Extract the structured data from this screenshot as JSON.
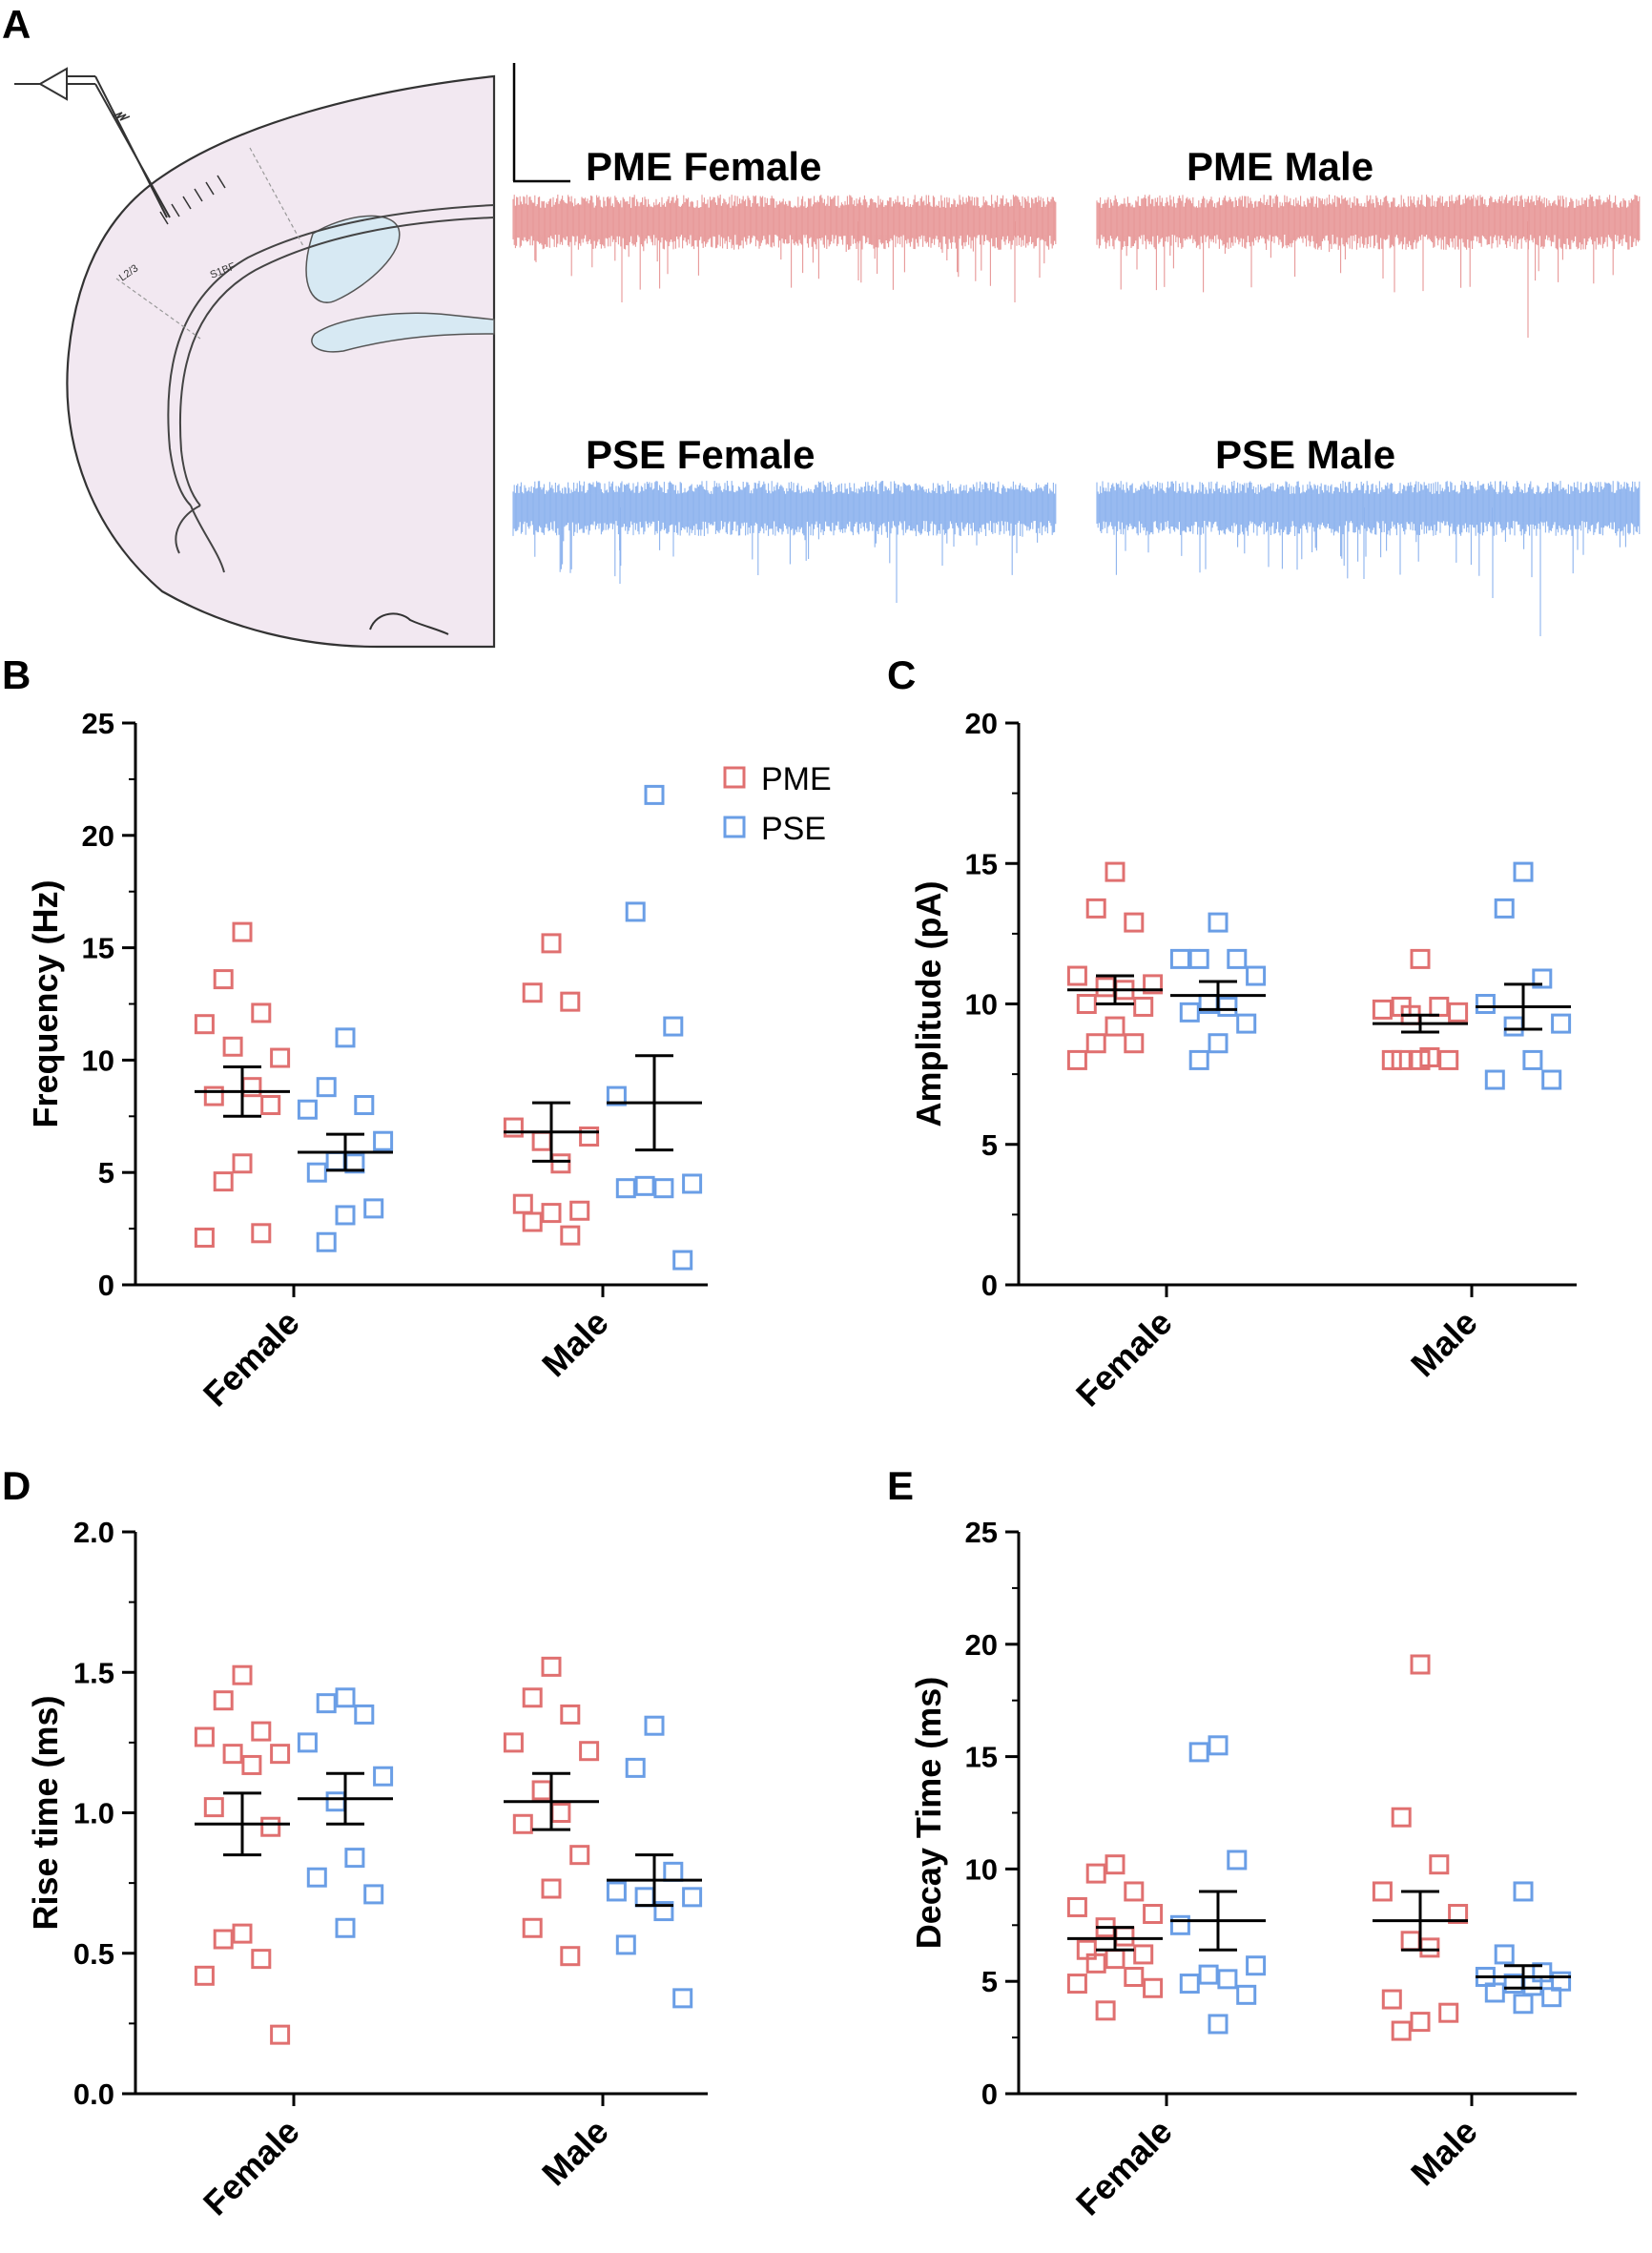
{
  "colors": {
    "pme": "#e07070",
    "pse": "#6a9ee6",
    "pme_trace": "#e79797",
    "pse_trace": "#8db3ee",
    "brain_fill": "#f2e8f1",
    "ventricle": "#d7e9f3",
    "axis": "#000000"
  },
  "panel_a": {
    "letter": "A",
    "brain_labels": {
      "layer": "L2/3",
      "region": "S1BF"
    },
    "traces": [
      {
        "label": "PME Female",
        "group": "pme"
      },
      {
        "label": "PME Male",
        "group": "pme"
      },
      {
        "label": "PSE Female",
        "group": "pse"
      },
      {
        "label": "PSE Male",
        "group": "pse"
      }
    ],
    "icons": [
      "electrode-amplifier-icon",
      "scale-bar-icon",
      "brain-slice-diagram"
    ]
  },
  "legend": {
    "items": [
      "PME",
      "PSE"
    ],
    "placement": "top-right of panel B"
  },
  "chart_data": [
    {
      "panel": "B",
      "type": "scatter",
      "ylabel": "Frequency (Hz)",
      "ylim": [
        0,
        25
      ],
      "yticks": [
        "0",
        "5",
        "10",
        "15",
        "20",
        "25"
      ],
      "categories": [
        "Female",
        "Male"
      ],
      "series": [
        {
          "name": "PME",
          "values": [
            [
              15.7,
              13.6,
              12.1,
              11.6,
              10.1,
              10.6,
              8.8,
              8.4,
              8.0,
              5.4,
              4.6,
              2.3,
              2.1
            ],
            [
              15.2,
              13.0,
              12.6,
              7.0,
              6.6,
              6.4,
              5.4,
              3.6,
              3.3,
              3.2,
              2.8,
              2.2
            ]
          ],
          "mean": [
            8.6,
            6.8
          ],
          "sem": [
            1.1,
            1.3
          ]
        },
        {
          "name": "PSE",
          "values": [
            [
              11.0,
              8.8,
              8.0,
              7.8,
              6.4,
              5.5,
              5.4,
              5.0,
              3.4,
              3.1,
              1.9
            ],
            [
              21.8,
              16.6,
              11.5,
              8.4,
              4.5,
              4.4,
              4.3,
              4.3,
              1.1
            ]
          ],
          "mean": [
            5.9,
            8.1
          ],
          "sem": [
            0.8,
            2.1
          ]
        }
      ]
    },
    {
      "panel": "C",
      "type": "scatter",
      "ylabel": "Amplitude (pA)",
      "ylim": [
        0,
        20
      ],
      "yticks": [
        "0",
        "5",
        "10",
        "15",
        "20"
      ],
      "categories": [
        "Female",
        "Male"
      ],
      "series": [
        {
          "name": "PME",
          "values": [
            [
              14.7,
              13.4,
              12.9,
              11.0,
              10.7,
              10.6,
              10.5,
              10.0,
              9.9,
              9.2,
              8.6,
              8.6,
              8.0
            ],
            [
              11.6,
              9.9,
              9.9,
              9.8,
              9.7,
              9.6,
              8.1,
              8.0,
              8.0,
              8.0,
              8.0
            ]
          ],
          "mean": [
            10.5,
            9.3
          ],
          "sem": [
            0.5,
            0.3
          ]
        },
        {
          "name": "PSE",
          "values": [
            [
              12.9,
              11.6,
              11.6,
              11.6,
              11.0,
              10.0,
              9.9,
              9.7,
              9.3,
              8.6,
              8.0
            ],
            [
              14.7,
              13.4,
              10.9,
              10.0,
              9.3,
              9.2,
              8.0,
              7.3,
              7.3
            ]
          ],
          "mean": [
            10.3,
            9.9
          ],
          "sem": [
            0.5,
            0.8
          ]
        }
      ]
    },
    {
      "panel": "D",
      "type": "scatter",
      "ylabel": "Rise time (ms)",
      "ylim": [
        0,
        2
      ],
      "yticks": [
        "0.0",
        "0.5",
        "1.0",
        "1.5",
        "2.0"
      ],
      "categories": [
        "Female",
        "Male"
      ],
      "series": [
        {
          "name": "PME",
          "values": [
            [
              1.49,
              1.4,
              1.29,
              1.27,
              1.21,
              1.21,
              1.17,
              1.02,
              0.95,
              0.57,
              0.55,
              0.48,
              0.42,
              0.21
            ],
            [
              1.52,
              1.41,
              1.35,
              1.25,
              1.22,
              1.08,
              1.0,
              0.96,
              0.85,
              0.73,
              0.59,
              0.49
            ]
          ],
          "mean": [
            0.96,
            1.04
          ],
          "sem": [
            0.11,
            0.1
          ]
        },
        {
          "name": "PSE",
          "values": [
            [
              1.41,
              1.39,
              1.35,
              1.25,
              1.13,
              1.04,
              0.84,
              0.77,
              0.71,
              0.59
            ],
            [
              1.31,
              1.16,
              0.79,
              0.72,
              0.7,
              0.7,
              0.65,
              0.53,
              0.34
            ]
          ],
          "mean": [
            1.05,
            0.76
          ],
          "sem": [
            0.09,
            0.09
          ]
        }
      ]
    },
    {
      "panel": "E",
      "type": "scatter",
      "ylabel": "Decay Time (ms)",
      "ylim": [
        0,
        25
      ],
      "yticks": [
        "0",
        "5",
        "10",
        "15",
        "20",
        "25"
      ],
      "categories": [
        "Female",
        "Male"
      ],
      "series": [
        {
          "name": "PME",
          "values": [
            [
              10.2,
              9.8,
              9.0,
              8.3,
              8.0,
              7.4,
              7.0,
              6.4,
              6.2,
              6.0,
              5.8,
              5.2,
              4.9,
              4.7,
              3.7
            ],
            [
              19.1,
              12.3,
              10.2,
              9.0,
              8.0,
              6.8,
              6.5,
              4.2,
              3.6,
              3.2,
              2.8
            ]
          ],
          "mean": [
            6.9,
            7.7
          ],
          "sem": [
            0.5,
            1.3
          ]
        },
        {
          "name": "PSE",
          "values": [
            [
              15.5,
              15.2,
              10.4,
              7.5,
              5.7,
              5.3,
              5.1,
              4.9,
              4.4,
              3.1
            ],
            [
              9.0,
              6.2,
              5.4,
              5.2,
              5.0,
              4.9,
              4.8,
              4.5,
              4.3,
              4.0
            ]
          ],
          "mean": [
            7.7,
            5.2
          ],
          "sem": [
            1.3,
            0.5
          ]
        }
      ]
    }
  ]
}
